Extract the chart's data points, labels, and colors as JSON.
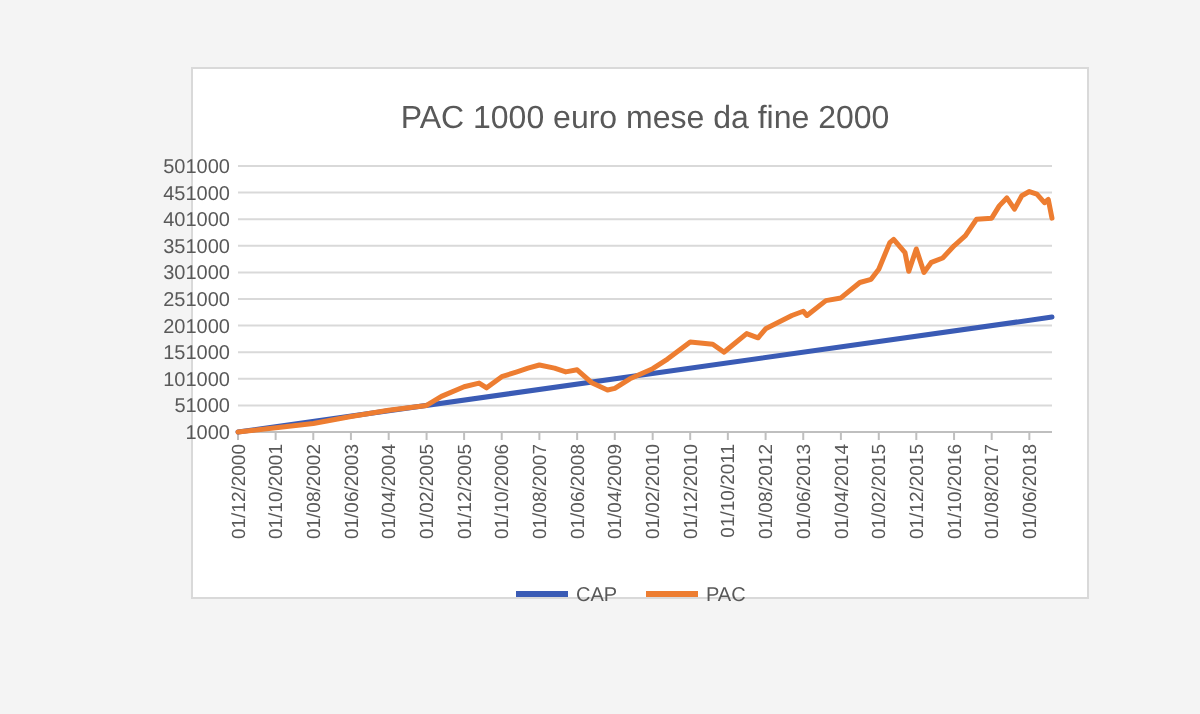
{
  "chart_data": {
    "type": "line",
    "title": "PAC 1000 euro mese da fine 2000",
    "x": [
      "2000-12",
      "2002-08",
      "2003-06",
      "2004-04",
      "2005-02",
      "2005-06",
      "2005-12",
      "2006-04",
      "2006-06",
      "2006-10",
      "2007-02",
      "2007-05",
      "2007-08",
      "2007-12",
      "2008-03",
      "2008-06",
      "2008-10",
      "2009-02",
      "2009-04",
      "2009-08",
      "2010-02",
      "2010-06",
      "2010-12",
      "2011-06",
      "2011-09",
      "2011-10",
      "2012-03",
      "2012-06",
      "2012-08",
      "2013-03",
      "2013-06",
      "2013-07",
      "2013-12",
      "2014-04",
      "2014-09",
      "2014-12",
      "2015-02",
      "2015-05",
      "2015-06",
      "2015-09",
      "2015-10",
      "2015-12",
      "2016-02",
      "2016-04",
      "2016-07",
      "2016-10",
      "2017-01",
      "2017-04",
      "2017-08",
      "2017-10",
      "2017-12",
      "2018-02",
      "2018-04",
      "2018-06",
      "2018-08",
      "2018-10",
      "2018-11",
      "2018-12"
    ],
    "series": [
      {
        "name": "CAP",
        "color": "#3a5bb5",
        "x": [
          "2000-12",
          "2018-12"
        ],
        "values": [
          1000,
          217000
        ]
      },
      {
        "name": "PAC",
        "color": "#ed7d31",
        "values": [
          1000,
          17000,
          30000,
          42000,
          51000,
          68000,
          86000,
          93000,
          84000,
          105000,
          114000,
          121000,
          127000,
          121000,
          114000,
          118000,
          93000,
          80000,
          83000,
          101000,
          120000,
          138000,
          170000,
          166000,
          151000,
          157000,
          186000,
          178000,
          195000,
          220000,
          228000,
          220000,
          248000,
          253000,
          282000,
          288000,
          307000,
          357000,
          363000,
          338000,
          303000,
          345000,
          301000,
          320000,
          328000,
          351000,
          370000,
          401000,
          403000,
          426000,
          441000,
          420000,
          445000,
          453000,
          448000,
          432000,
          438000,
          403000
        ]
      }
    ],
    "xlim": [
      "2000-12",
      "2018-12"
    ],
    "xticks": [
      {
        "value": "2000-12-01",
        "label": "01/12/2000"
      },
      {
        "value": "2001-10-01",
        "label": "01/10/2001"
      },
      {
        "value": "2002-08-01",
        "label": "01/08/2002"
      },
      {
        "value": "2003-06-01",
        "label": "01/06/2003"
      },
      {
        "value": "2004-04-01",
        "label": "01/04/2004"
      },
      {
        "value": "2005-02-01",
        "label": "01/02/2005"
      },
      {
        "value": "2005-12-01",
        "label": "01/12/2005"
      },
      {
        "value": "2006-10-01",
        "label": "01/10/2006"
      },
      {
        "value": "2007-08-01",
        "label": "01/08/2007"
      },
      {
        "value": "2008-06-01",
        "label": "01/06/2008"
      },
      {
        "value": "2009-04-01",
        "label": "01/04/2009"
      },
      {
        "value": "2010-02-01",
        "label": "01/02/2010"
      },
      {
        "value": "2010-12-01",
        "label": "01/12/2010"
      },
      {
        "value": "2011-10-01",
        "label": "01/10/2011"
      },
      {
        "value": "2012-08-01",
        "label": "01/08/2012"
      },
      {
        "value": "2013-06-01",
        "label": "01/06/2013"
      },
      {
        "value": "2014-04-01",
        "label": "01/04/2014"
      },
      {
        "value": "2015-02-01",
        "label": "01/02/2015"
      },
      {
        "value": "2015-12-01",
        "label": "01/12/2015"
      },
      {
        "value": "2016-10-01",
        "label": "01/10/2016"
      },
      {
        "value": "2017-08-01",
        "label": "01/08/2017"
      },
      {
        "value": "2018-06-01",
        "label": "01/06/2018"
      }
    ],
    "ylim": [
      1000,
      501000
    ],
    "yticks": [
      1000,
      51000,
      101000,
      151000,
      201000,
      251000,
      301000,
      351000,
      401000,
      451000,
      501000
    ],
    "grid": "y",
    "legend": "bottom",
    "line_style": "solid",
    "marker": "none"
  }
}
